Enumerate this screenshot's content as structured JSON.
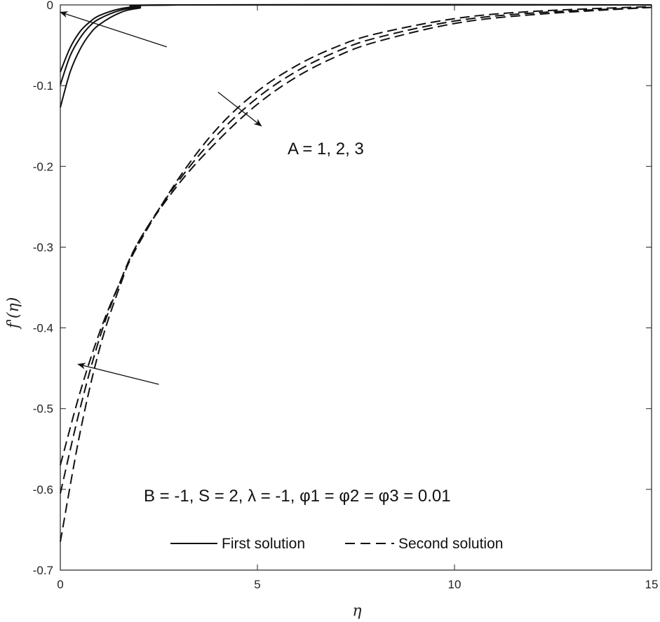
{
  "chart_data": {
    "type": "line",
    "xlabel": "η",
    "ylabel": "f'(η)",
    "xlim": [
      0,
      15
    ],
    "ylim": [
      -0.7,
      0
    ],
    "xticks": [
      "0",
      "5",
      "10",
      "15"
    ],
    "yticks": [
      "0",
      "-0.1",
      "-0.2",
      "-0.3",
      "-0.4",
      "-0.5",
      "-0.6",
      "-0.7"
    ],
    "legend": {
      "position": "bottom-center",
      "first_label": "First solution",
      "second_label": "Second solution"
    },
    "annotations": {
      "param_A": "A = 1, 2, 3",
      "params": "B = -1,  S = 2,  λ = -1,  φ1 =  φ2 =  φ3 = 0.01"
    },
    "series": [
      {
        "group": "first",
        "style": "solid",
        "x": [
          0,
          0.25,
          0.5,
          0.75,
          1.0,
          1.5,
          2.0,
          3.0,
          15
        ],
        "y": [
          -0.083,
          -0.053,
          -0.033,
          -0.021,
          -0.013,
          -0.005,
          -0.002,
          0,
          0
        ]
      },
      {
        "group": "first",
        "style": "solid",
        "x": [
          0,
          0.25,
          0.5,
          0.75,
          1.0,
          1.5,
          2.0,
          3.0,
          15
        ],
        "y": [
          -0.099,
          -0.063,
          -0.041,
          -0.026,
          -0.017,
          -0.007,
          -0.003,
          0,
          0
        ]
      },
      {
        "group": "first",
        "style": "solid",
        "x": [
          0,
          0.25,
          0.5,
          0.75,
          1.0,
          1.5,
          2.0,
          3.0,
          15
        ],
        "y": [
          -0.127,
          -0.083,
          -0.055,
          -0.036,
          -0.024,
          -0.01,
          -0.004,
          0,
          0
        ]
      },
      {
        "group": "second",
        "style": "dashed",
        "x": [
          0,
          0.5,
          1,
          1.5,
          2,
          3,
          4,
          5,
          6,
          7,
          8,
          10,
          12,
          15
        ],
        "y": [
          -0.57,
          -0.48,
          -0.405,
          -0.345,
          -0.295,
          -0.215,
          -0.152,
          -0.107,
          -0.075,
          -0.052,
          -0.036,
          -0.017,
          -0.008,
          -0.002
        ]
      },
      {
        "group": "second",
        "style": "dashed",
        "x": [
          0,
          0.5,
          1,
          1.5,
          2,
          3,
          4,
          5,
          6,
          7,
          8,
          10,
          12,
          15
        ],
        "y": [
          -0.605,
          -0.5,
          -0.412,
          -0.345,
          -0.292,
          -0.218,
          -0.16,
          -0.115,
          -0.082,
          -0.058,
          -0.041,
          -0.02,
          -0.01,
          -0.003
        ]
      },
      {
        "group": "second",
        "style": "dashed",
        "x": [
          0,
          0.5,
          1,
          1.5,
          2,
          3,
          4,
          5,
          6,
          7,
          8,
          10,
          12,
          15
        ],
        "y": [
          -0.665,
          -0.53,
          -0.425,
          -0.35,
          -0.292,
          -0.222,
          -0.168,
          -0.123,
          -0.089,
          -0.064,
          -0.046,
          -0.023,
          -0.012,
          -0.003
        ]
      }
    ],
    "arrows": [
      {
        "from": [
          2.7,
          -0.052
        ],
        "to": [
          0,
          -0.009
        ]
      },
      {
        "from": [
          4.0,
          -0.108
        ],
        "to": [
          5.1,
          -0.15
        ]
      },
      {
        "from": [
          2.5,
          -0.47
        ],
        "to": [
          0.45,
          -0.445
        ]
      }
    ],
    "grid": false
  }
}
